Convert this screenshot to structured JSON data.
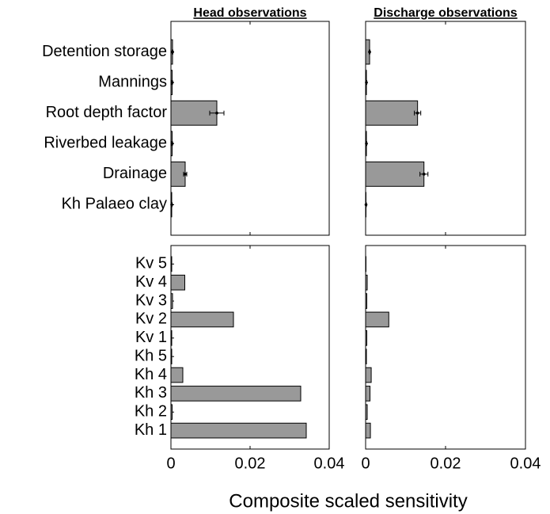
{
  "chart_data": [
    {
      "type": "bar",
      "title": "Head observations",
      "categories": [
        "Detention storage",
        "Mannings",
        "Root depth factor",
        "Riverbed leakage",
        "Drainage",
        "Kh Palaeo clay"
      ],
      "values": [
        0.0004,
        0.0003,
        0.0116,
        0.0003,
        0.0036,
        0.0002
      ],
      "errors": [
        0.0001,
        0.0001,
        0.0018,
        0.0001,
        0.0004,
        0.0001
      ],
      "color": "#999999",
      "xlim": [
        0,
        0.04
      ],
      "xticks": [
        0,
        0.02,
        0.04
      ]
    },
    {
      "type": "bar",
      "title": "Discharge observations",
      "values": [
        0.001,
        0.0002,
        0.013,
        0.0002,
        0.0146,
        0.0001
      ],
      "errors": [
        0.0001,
        0.0001,
        0.0008,
        0.0001,
        0.001,
        0.0001
      ],
      "color": "#999999",
      "xlim": [
        0,
        0.04
      ],
      "xticks": [
        0,
        0.02,
        0.04
      ]
    },
    {
      "type": "bar",
      "xlabel": "Composite scaled sensitivity",
      "categories": [
        "Kv 5",
        "Kv 4",
        "Kv 3",
        "Kv 2",
        "Kv 1",
        "Kh 5",
        "Kh 4",
        "Kh 3",
        "Kh 2",
        "Kh 1"
      ],
      "values": [
        0.0002,
        0.0035,
        0.0004,
        0.0158,
        0.0002,
        0.0002,
        0.003,
        0.0328,
        0.0003,
        0.0342
      ],
      "color": "#999999",
      "xlim": [
        0,
        0.04
      ],
      "xticks": [
        0,
        0.02,
        0.04
      ]
    },
    {
      "type": "bar",
      "values": [
        0.0001,
        0.0004,
        0.0003,
        0.0058,
        0.0003,
        0.0002,
        0.0014,
        0.0011,
        0.0004,
        0.0012
      ],
      "color": "#999999",
      "xlim": [
        0,
        0.04
      ],
      "xticks": [
        0,
        0.02,
        0.04
      ]
    }
  ]
}
